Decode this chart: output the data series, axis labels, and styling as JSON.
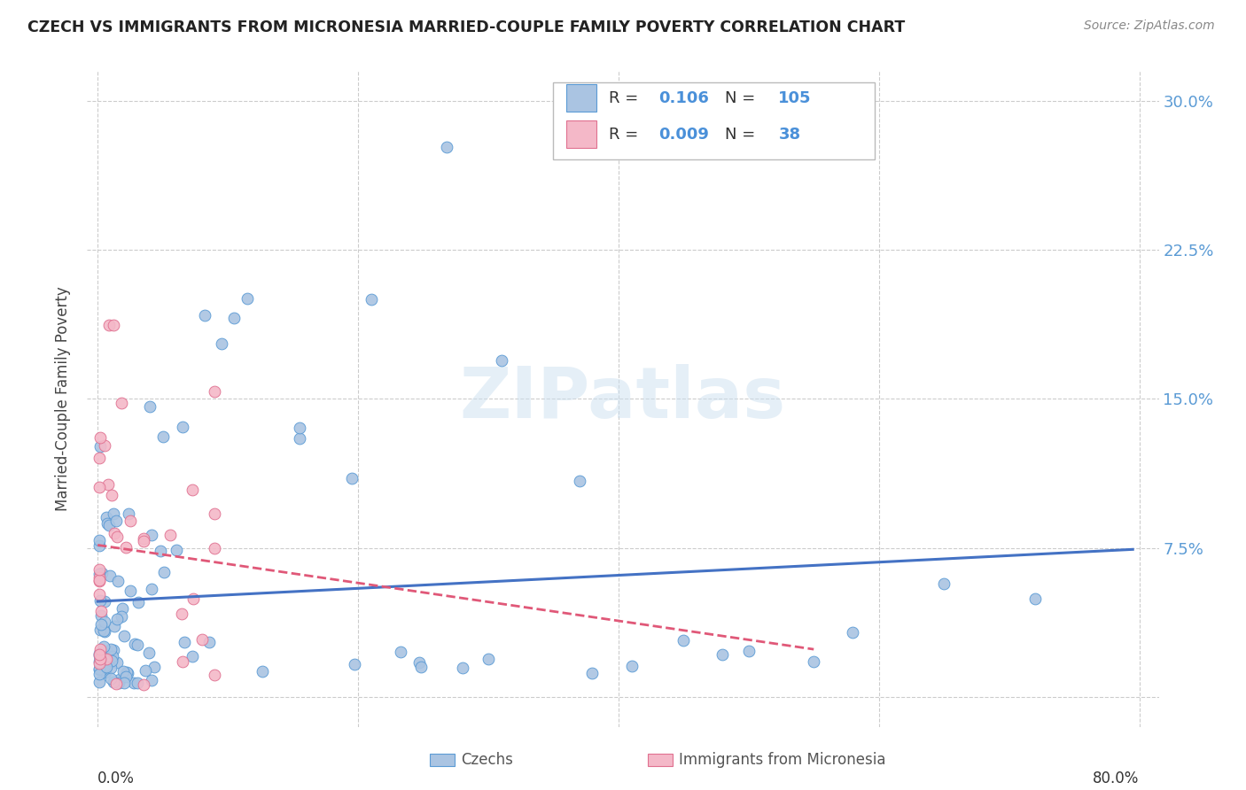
{
  "title": "CZECH VS IMMIGRANTS FROM MICRONESIA MARRIED-COUPLE FAMILY POVERTY CORRELATION CHART",
  "source": "Source: ZipAtlas.com",
  "ylabel": "Married-Couple Family Poverty",
  "yticks": [
    0.0,
    0.075,
    0.15,
    0.225,
    0.3
  ],
  "ytick_labels": [
    "",
    "7.5%",
    "15.0%",
    "22.5%",
    "30.0%"
  ],
  "xmin": 0.0,
  "xmax": 0.8,
  "ymin": -0.015,
  "ymax": 0.315,
  "czech_color": "#aac4e2",
  "czech_edge_color": "#5b9bd5",
  "czech_line_color": "#4472c4",
  "micronesia_color": "#f4b8c8",
  "micronesia_edge_color": "#e07090",
  "micronesia_line_color": "#e05878",
  "legend_R_czech": "0.106",
  "legend_N_czech": "105",
  "legend_R_micro": "0.009",
  "legend_N_micro": "38",
  "watermark": "ZIPatlas",
  "grid_color": "#cccccc",
  "right_axis_color": "#5b9bd5"
}
